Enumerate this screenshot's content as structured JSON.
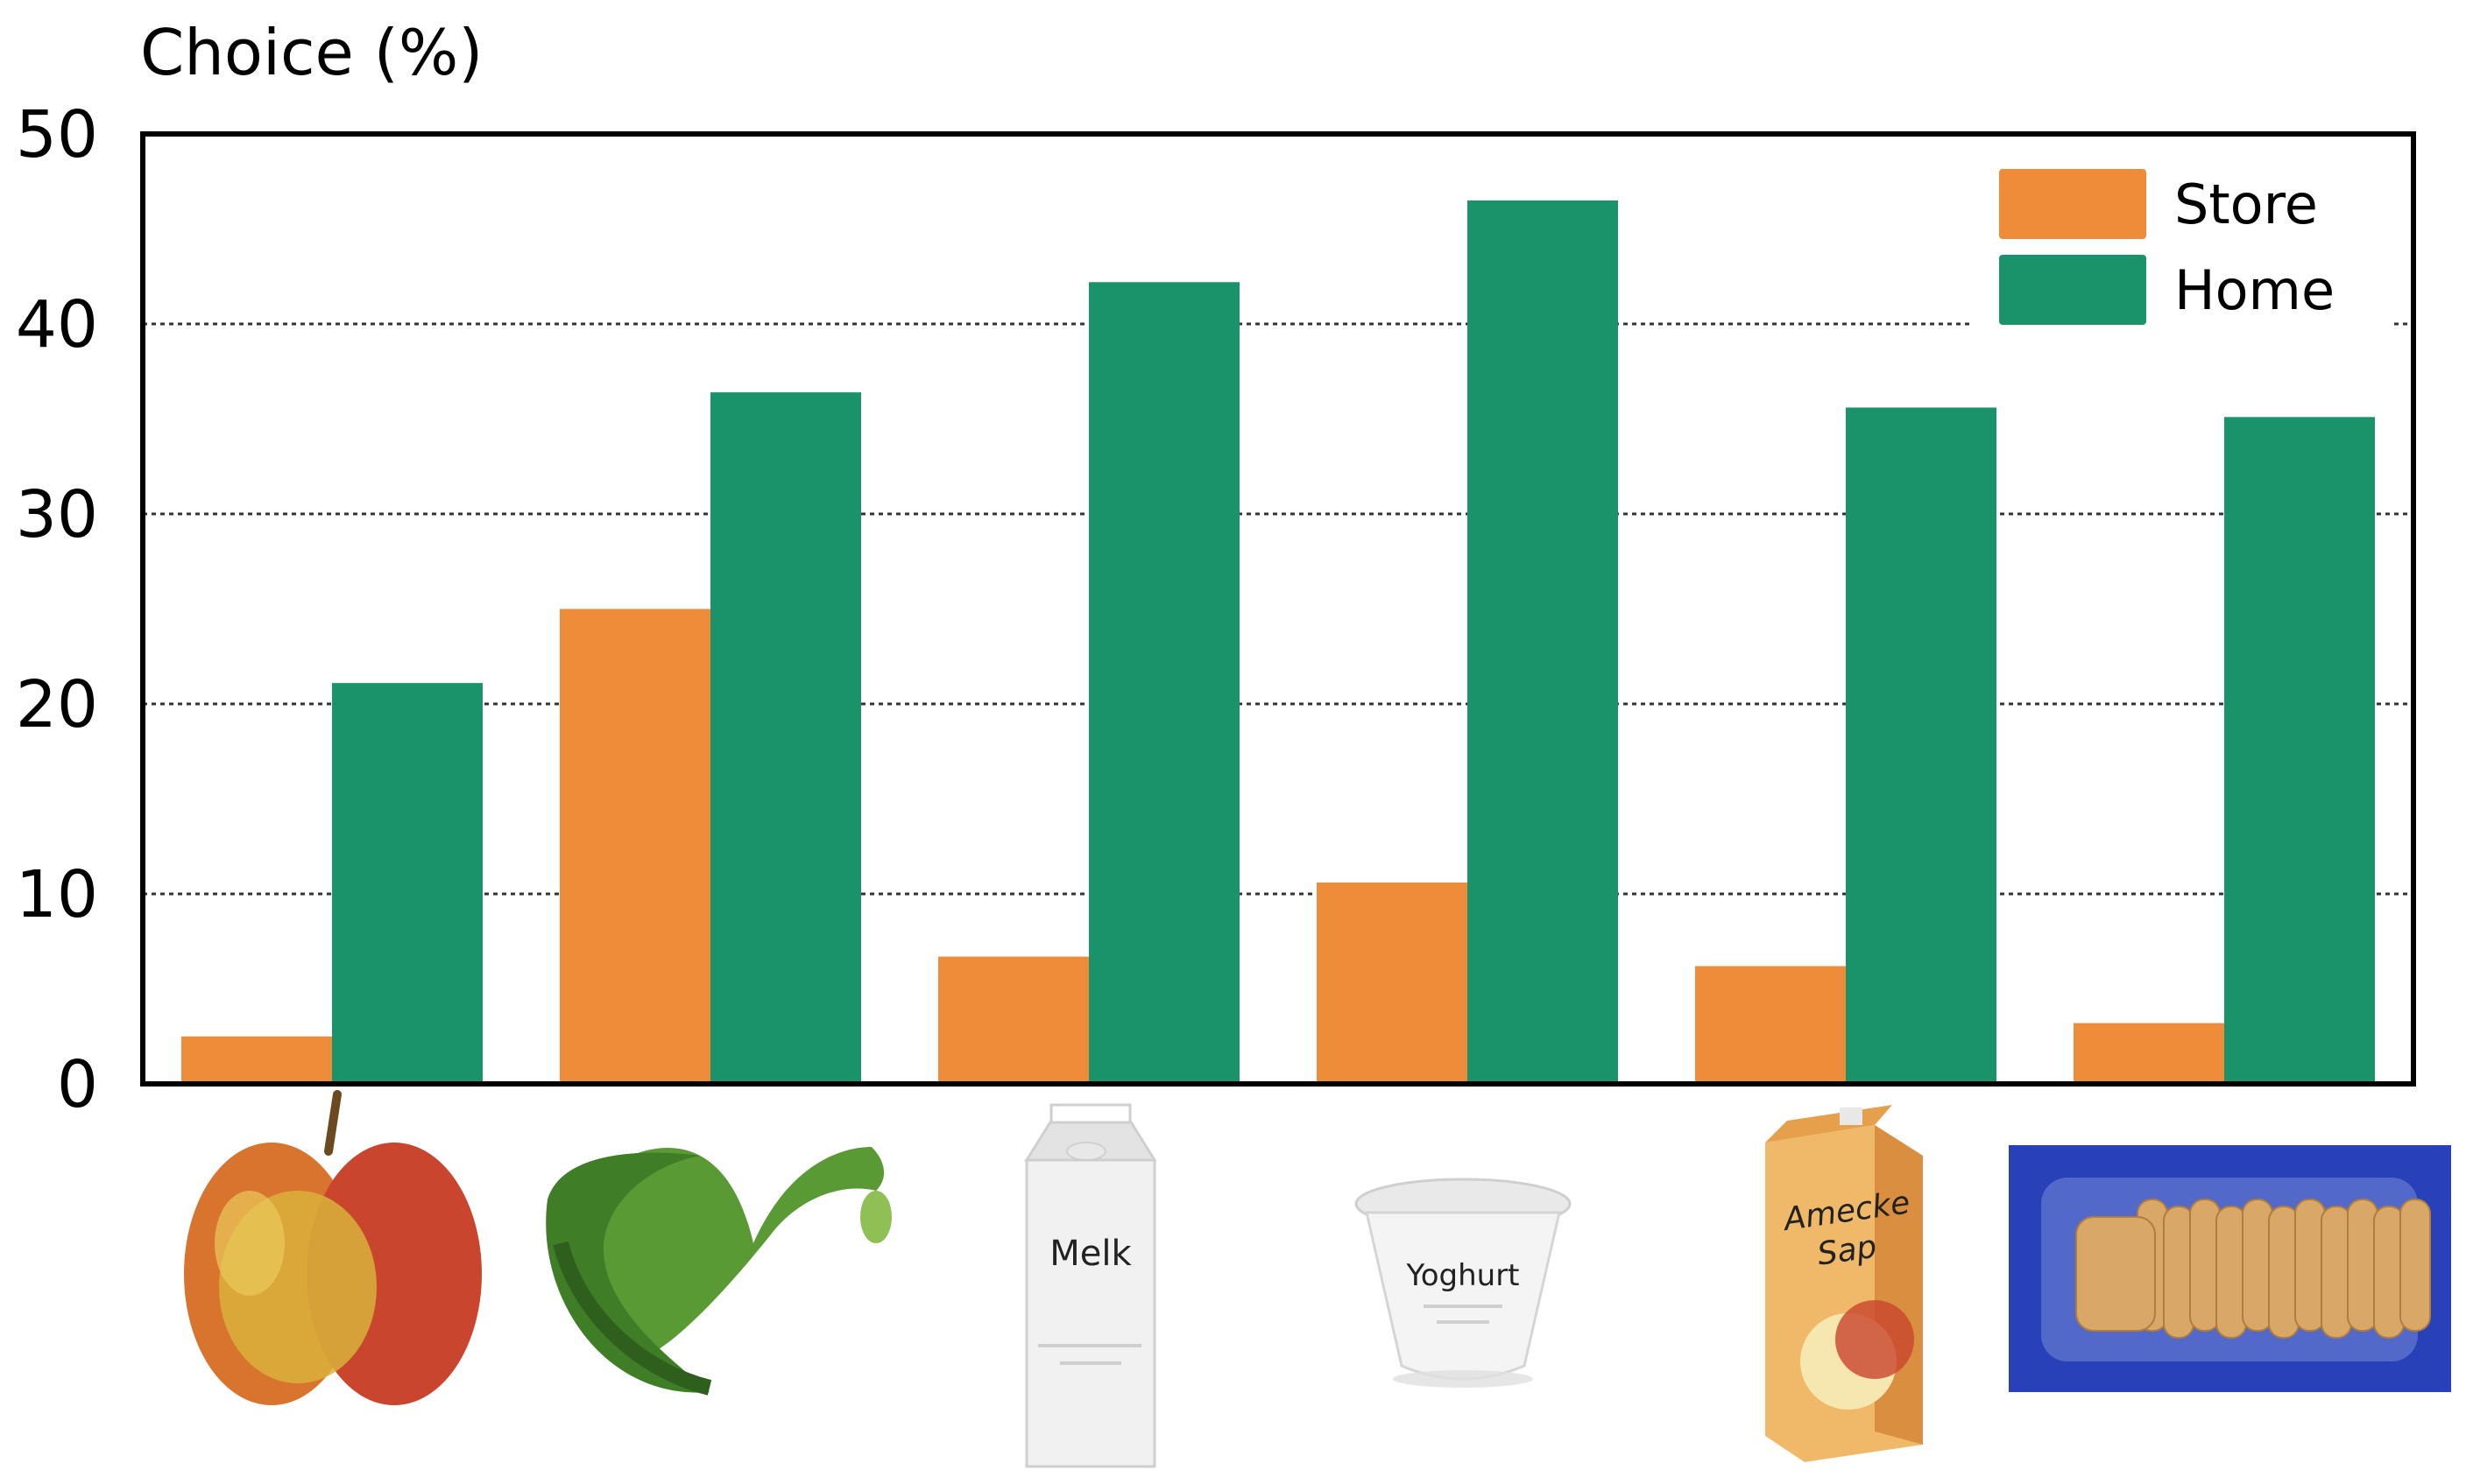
{
  "chart_data": {
    "type": "bar",
    "title": "",
    "xlabel": "",
    "ylabel": "Choice (%)",
    "ylim": [
      0,
      50
    ],
    "yticks": [
      0,
      10,
      20,
      30,
      40,
      50
    ],
    "grid": true,
    "legend_position": "top-right",
    "categories": [
      "apple",
      "cucumber",
      "milk",
      "yoghurt",
      "juice",
      "ladyfingers"
    ],
    "series": [
      {
        "name": "Store",
        "color": "#EE8C3A",
        "values": [
          2.5,
          25.0,
          6.7,
          10.6,
          6.2,
          3.2
        ]
      },
      {
        "name": "Home",
        "color": "#1B936A",
        "values": [
          21.1,
          36.4,
          42.2,
          46.5,
          35.6,
          35.1
        ]
      }
    ]
  },
  "icons": [
    "apple-icon",
    "cucumber-icon",
    "milk-carton-icon",
    "yoghurt-cup-icon",
    "juice-carton-icon",
    "ladyfingers-pack-icon"
  ],
  "product_labels": {
    "milk": "Melk",
    "yoghurt": "Yoghurt",
    "juice_brand": "Amecke",
    "juice_type": "Sap"
  }
}
